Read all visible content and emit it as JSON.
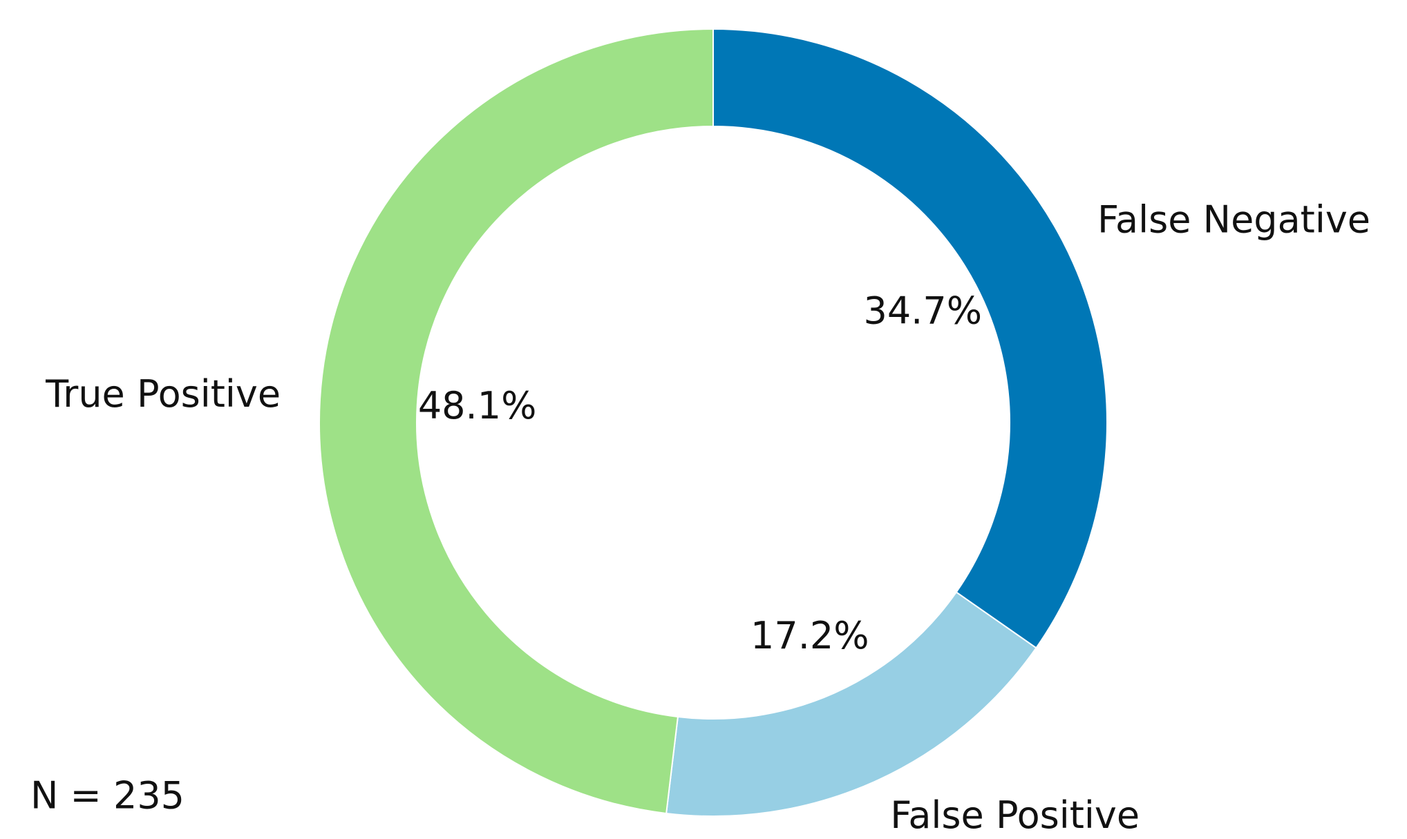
{
  "chart_data": {
    "type": "donut",
    "categories": [
      "False Negative",
      "False Positive",
      "True Positive"
    ],
    "values": [
      34.7,
      17.2,
      48.1
    ],
    "value_labels": [
      "34.7%",
      "17.2%",
      "48.1%"
    ],
    "colors": [
      "#0077b6",
      "#97cfe4",
      "#9ee187"
    ],
    "annotation": "N = 235"
  }
}
